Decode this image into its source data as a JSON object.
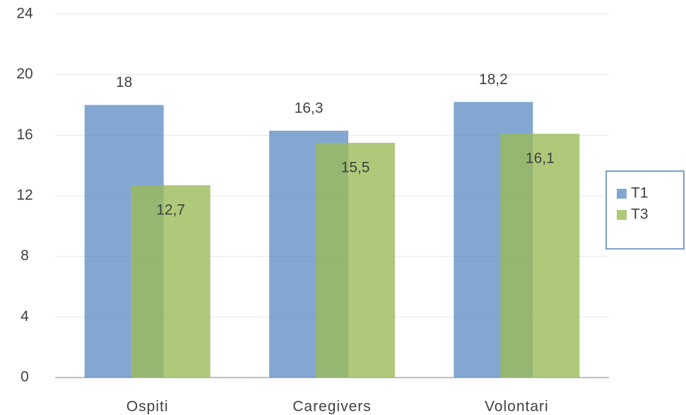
{
  "chart_data": {
    "type": "bar",
    "categories": [
      "Ospiti",
      "Caregivers",
      "Volontari"
    ],
    "series": [
      {
        "name": "T1",
        "color": "#4f81bd",
        "values": [
          18,
          16.3,
          18.2
        ],
        "value_labels": [
          "18",
          "16,3",
          "18,2"
        ]
      },
      {
        "name": "T3",
        "color": "#9bbb59",
        "values": [
          12.7,
          15.5,
          16.1
        ],
        "value_labels": [
          "12,7",
          "15,5",
          "16,1"
        ]
      }
    ],
    "ylim": [
      0,
      24
    ],
    "yticks": [
      0,
      4,
      8,
      12,
      16,
      20,
      24
    ],
    "grid": true,
    "legend": "right"
  }
}
